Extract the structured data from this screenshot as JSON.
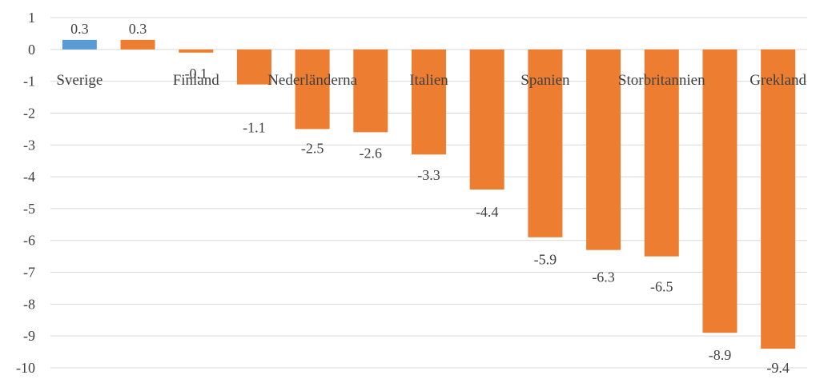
{
  "chart_data": {
    "type": "bar",
    "categories": [
      "Sverige",
      "",
      "Finland",
      "",
      "Nederländerna",
      "",
      "Italien",
      "",
      "Spanien",
      "",
      "Storbritannien",
      "",
      "Grekland"
    ],
    "values": [
      0.3,
      0.3,
      -0.1,
      -1.1,
      -2.5,
      -2.6,
      -3.3,
      -4.4,
      -5.9,
      -6.3,
      -6.5,
      -8.9,
      -9.4
    ],
    "value_labels": [
      "0.3",
      "0.3",
      "-0.1",
      "-1.1",
      "-2.5",
      "-2.6",
      "-3.3",
      "-4.4",
      "-5.9",
      "-6.3",
      "-6.5",
      "-8.9",
      "-9.4"
    ],
    "bar_colors": [
      "#5b9bd5",
      "#ed7d31",
      "#ed7d31",
      "#ed7d31",
      "#ed7d31",
      "#ed7d31",
      "#ed7d31",
      "#ed7d31",
      "#ed7d31",
      "#ed7d31",
      "#ed7d31",
      "#ed7d31",
      "#ed7d31"
    ],
    "ylim": [
      -10,
      1
    ],
    "yticks": [
      1,
      0,
      -1,
      -2,
      -3,
      -4,
      -5,
      -6,
      -7,
      -8,
      -9,
      -10
    ],
    "grid": true,
    "legend": "none",
    "title": "",
    "xlabel": "",
    "ylabel": ""
  }
}
